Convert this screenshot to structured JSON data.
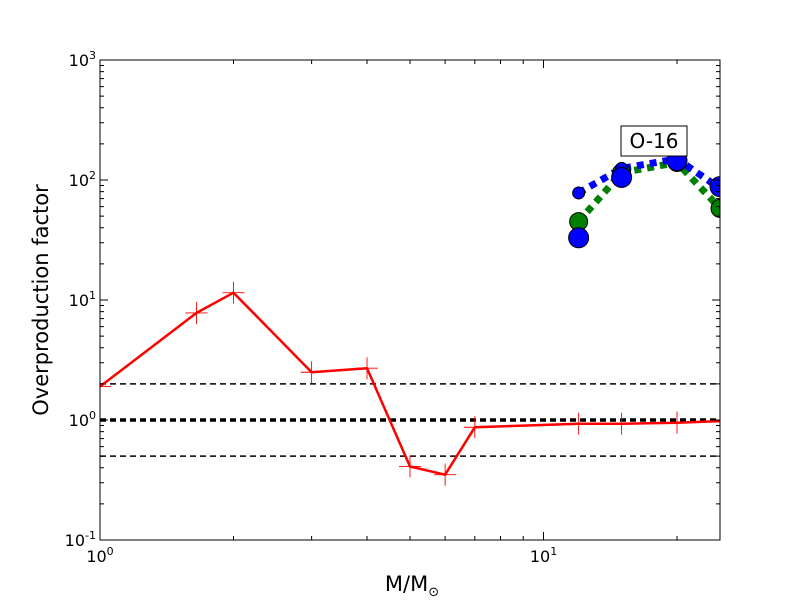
{
  "chart_data": {
    "type": "line",
    "xscale": "log",
    "yscale": "log",
    "xlim": [
      1,
      25
    ],
    "ylim": [
      0.1,
      1000
    ],
    "xlabel": {
      "main": "M/M",
      "subscript": "⊙"
    },
    "ylabel": "Overproduction factor",
    "x_ticks": [
      {
        "value": 1,
        "base": "10",
        "exp": "0"
      },
      {
        "value": 10,
        "base": "10",
        "exp": "1"
      }
    ],
    "y_ticks": [
      {
        "value": 0.1,
        "base": "10",
        "exp": "-1"
      },
      {
        "value": 1,
        "base": "10",
        "exp": "0"
      },
      {
        "value": 10,
        "base": "10",
        "exp": "1"
      },
      {
        "value": 100,
        "base": "10",
        "exp": "2"
      },
      {
        "value": 1000,
        "base": "10",
        "exp": "3"
      }
    ],
    "reference_lines": [
      {
        "y": 2.0,
        "style": "dashed",
        "color": "#000000",
        "width": 1.5
      },
      {
        "y": 1.0,
        "style": "dashed",
        "color": "#000000",
        "width": 3.5
      },
      {
        "y": 0.5,
        "style": "dashed",
        "color": "#000000",
        "width": 1.5
      }
    ],
    "series": [
      {
        "color": "#ff0000",
        "style": "solid",
        "marker": "plus",
        "x": [
          1.0,
          1.65,
          2.0,
          3.0,
          4.0,
          5.0,
          6.0,
          7.0,
          12.0,
          15.0,
          20.0,
          25.0
        ],
        "y": [
          1.9,
          7.8,
          11.5,
          2.5,
          2.7,
          0.41,
          0.35,
          0.87,
          0.93,
          0.93,
          0.95,
          0.98
        ]
      },
      {
        "color": "#008000",
        "style": "dotted",
        "marker": "circle",
        "x": [
          12.0,
          15.0,
          20.0,
          25.0
        ],
        "y": [
          45,
          115,
          140,
          58
        ],
        "sizes": [
          9,
          9,
          9,
          9
        ]
      },
      {
        "color": "#0000ff",
        "style": "dotted",
        "marker": "circle",
        "x": [
          12.0,
          15.0,
          20.0,
          25.0
        ],
        "y": [
          78,
          125,
          150,
          85
        ],
        "sizes": [
          6,
          6,
          6,
          6
        ]
      },
      {
        "color": "#0000ff",
        "style": "none",
        "marker": "circle",
        "x": [
          12.0,
          15.0,
          20.0,
          25.0
        ],
        "y": [
          33,
          105,
          145,
          88
        ],
        "sizes": [
          10,
          10,
          10,
          10
        ]
      }
    ],
    "annotation": {
      "text": "O-16"
    }
  }
}
